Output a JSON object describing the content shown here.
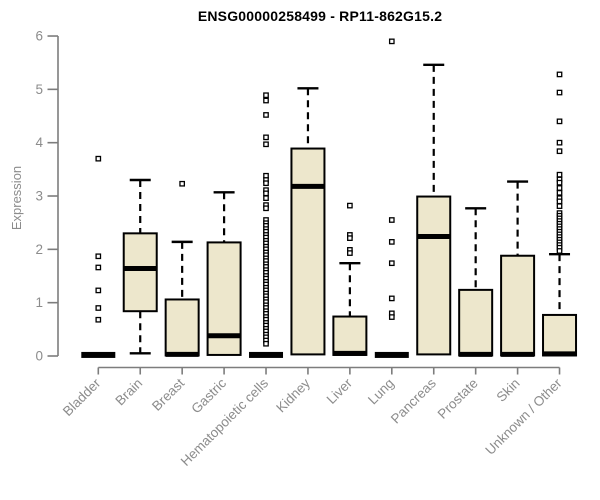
{
  "chart_data": {
    "type": "boxplot",
    "title": "ENSG00000258499 - RP11-862G15.2",
    "ylabel": "Expression",
    "xlabel": "",
    "ylim": [
      0,
      6
    ],
    "yticks": [
      0,
      1,
      2,
      3,
      4,
      5,
      6
    ],
    "grid": false,
    "legend": "none",
    "categories": [
      "Bladder",
      "Brain",
      "Breast",
      "Gastric",
      "Hematopoietic cells",
      "Kidney",
      "Liver",
      "Lung",
      "Pancreas",
      "Prostate",
      "Skin",
      "Unknown / Other"
    ],
    "boxes": [
      {
        "name": "Bladder",
        "q1": 0,
        "median": 0.02,
        "q3": 0.04,
        "whisker_low": null,
        "whisker_high": null,
        "outliers": [
          0.68,
          0.9,
          1.23,
          1.66,
          1.87,
          3.7
        ]
      },
      {
        "name": "Brain",
        "q1": 0.84,
        "median": 1.64,
        "q3": 2.3,
        "whisker_low": 0.05,
        "whisker_high": 3.3,
        "outliers": []
      },
      {
        "name": "Breast",
        "q1": 0.01,
        "median": 0.03,
        "q3": 1.06,
        "whisker_low": null,
        "whisker_high": 2.14,
        "outliers": [
          3.23
        ]
      },
      {
        "name": "Gastric",
        "q1": 0.02,
        "median": 0.38,
        "q3": 2.13,
        "whisker_low": null,
        "whisker_high": 3.07,
        "outliers": []
      },
      {
        "name": "Hematopoietic cells",
        "q1": 0,
        "median": 0.02,
        "q3": 0.04,
        "whisker_low": null,
        "whisker_high": null,
        "outliers": [
          4.89,
          4.79,
          4.52,
          4.1,
          3.97,
          3.38,
          3.3,
          3.24,
          3.11,
          3.05,
          2.96,
          2.83,
          2.77,
          2.55,
          2.49,
          2.44,
          2.38,
          2.33,
          2.27,
          2.22,
          2.16,
          2.11,
          2.05,
          2.0,
          1.94,
          1.89,
          1.83,
          1.78,
          1.72,
          1.67,
          1.61,
          1.56,
          1.5,
          1.45,
          1.39,
          1.34,
          1.28,
          1.23,
          1.17,
          1.12,
          1.06,
          1.01,
          0.95,
          0.9,
          0.84,
          0.79,
          0.73,
          0.68,
          0.62,
          0.57,
          0.51,
          0.46,
          0.4,
          0.35,
          0.29,
          0.23
        ]
      },
      {
        "name": "Kidney",
        "q1": 0.03,
        "median": 3.18,
        "q3": 3.89,
        "whisker_low": null,
        "whisker_high": 5.02,
        "outliers": []
      },
      {
        "name": "Liver",
        "q1": 0.02,
        "median": 0.05,
        "q3": 0.74,
        "whisker_low": null,
        "whisker_high": 1.74,
        "outliers": [
          2.82,
          2.27,
          2.21,
          1.99,
          1.93
        ]
      },
      {
        "name": "Lung",
        "q1": 0,
        "median": 0.02,
        "q3": 0.04,
        "whisker_low": null,
        "whisker_high": null,
        "outliers": [
          5.9,
          2.55,
          2.14,
          1.74,
          1.08,
          0.8,
          0.73
        ]
      },
      {
        "name": "Pancreas",
        "q1": 0.03,
        "median": 2.24,
        "q3": 2.99,
        "whisker_low": null,
        "whisker_high": 5.46,
        "outliers": []
      },
      {
        "name": "Prostate",
        "q1": 0.01,
        "median": 0.03,
        "q3": 1.24,
        "whisker_low": null,
        "whisker_high": 2.77,
        "outliers": []
      },
      {
        "name": "Skin",
        "q1": 0.01,
        "median": 0.03,
        "q3": 1.88,
        "whisker_low": null,
        "whisker_high": 3.27,
        "outliers": []
      },
      {
        "name": "Unknown / Other",
        "q1": 0.01,
        "median": 0.04,
        "q3": 0.77,
        "whisker_low": null,
        "whisker_high": 1.91,
        "outliers": [
          5.28,
          4.94,
          4.4,
          4.0,
          3.84,
          3.4,
          3.31,
          3.25,
          3.15,
          3.06,
          2.96,
          2.9,
          2.81,
          2.68,
          2.63,
          2.58,
          2.53,
          2.48,
          2.43,
          2.38,
          2.33,
          2.28,
          2.23,
          2.18,
          2.13,
          2.08,
          2.03,
          1.97
        ]
      }
    ],
    "colors": {
      "box_fill": "#EDE7CC",
      "box_border": "#000000",
      "median": "#000000",
      "axis": "#7d7d7d",
      "tick_label": "#8c8c8c",
      "title": "#000000",
      "background": "#ffffff"
    }
  }
}
